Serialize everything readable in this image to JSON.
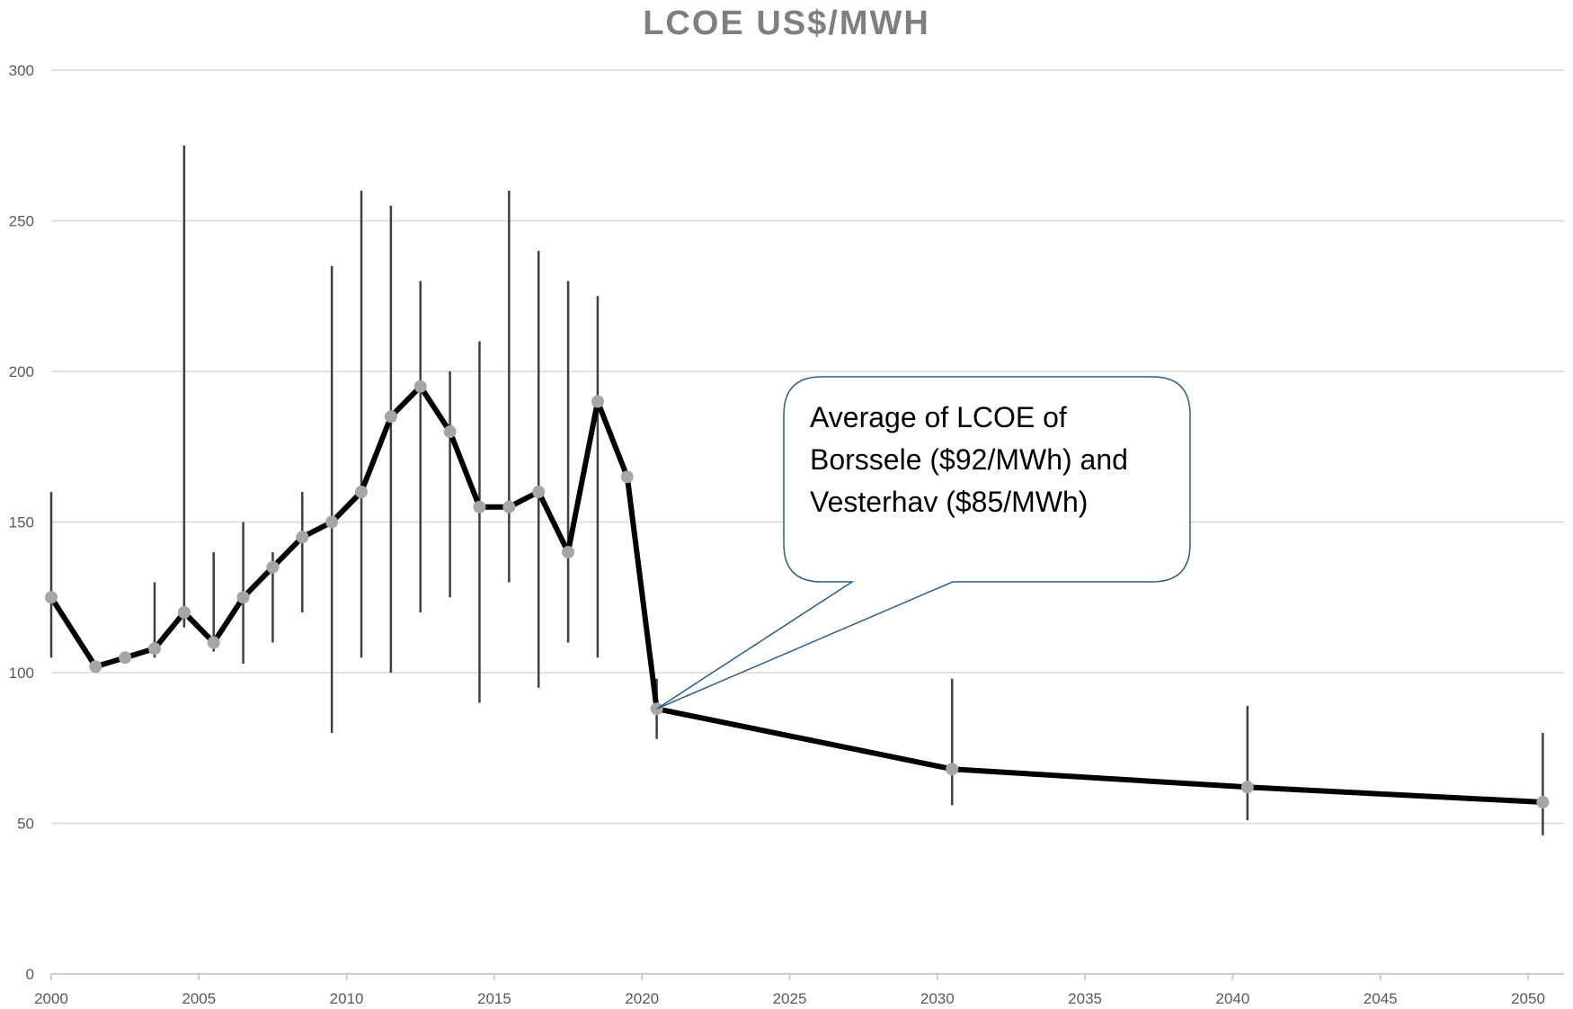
{
  "chart_data": {
    "type": "line",
    "title": "LCOE US$/MWH",
    "xlabel": "",
    "ylabel": "",
    "xlim": [
      2000,
      2050
    ],
    "ylim": [
      0,
      300
    ],
    "x_ticks": [
      "2000",
      "2005",
      "2010",
      "2015",
      "2020",
      "2025",
      "2030",
      "2035",
      "2040",
      "2045",
      "2050"
    ],
    "y_ticks": [
      "0",
      "50",
      "100",
      "150",
      "200",
      "250",
      "300"
    ],
    "grid": true,
    "series": [
      {
        "points": [
          {
            "x": 2000.0,
            "y": 125,
            "low": 105,
            "high": 160
          },
          {
            "x": 2001.5,
            "y": 102,
            "low": null,
            "high": null
          },
          {
            "x": 2002.5,
            "y": 105,
            "low": null,
            "high": null
          },
          {
            "x": 2003.5,
            "y": 108,
            "low": 105,
            "high": 130
          },
          {
            "x": 2004.5,
            "y": 120,
            "low": 115,
            "high": 275
          },
          {
            "x": 2005.5,
            "y": 110,
            "low": 107,
            "high": 140
          },
          {
            "x": 2006.5,
            "y": 125,
            "low": 103,
            "high": 150
          },
          {
            "x": 2007.5,
            "y": 135,
            "low": 110,
            "high": 140
          },
          {
            "x": 2008.5,
            "y": 145,
            "low": 120,
            "high": 160
          },
          {
            "x": 2009.5,
            "y": 150,
            "low": 80,
            "high": 235
          },
          {
            "x": 2010.5,
            "y": 160,
            "low": 105,
            "high": 260
          },
          {
            "x": 2011.5,
            "y": 185,
            "low": 100,
            "high": 255
          },
          {
            "x": 2012.5,
            "y": 195,
            "low": 120,
            "high": 230
          },
          {
            "x": 2013.5,
            "y": 180,
            "low": 125,
            "high": 200
          },
          {
            "x": 2014.5,
            "y": 155,
            "low": 90,
            "high": 210
          },
          {
            "x": 2015.5,
            "y": 155,
            "low": 130,
            "high": 260
          },
          {
            "x": 2016.5,
            "y": 160,
            "low": 95,
            "high": 240
          },
          {
            "x": 2017.5,
            "y": 140,
            "low": 110,
            "high": 230
          },
          {
            "x": 2018.5,
            "y": 190,
            "low": 105,
            "high": 225
          },
          {
            "x": 2019.5,
            "y": 165,
            "low": null,
            "high": null
          },
          {
            "x": 2020.5,
            "y": 88,
            "low": 78,
            "high": 98
          },
          {
            "x": 2030.5,
            "y": 68,
            "low": 56,
            "high": 98
          },
          {
            "x": 2040.5,
            "y": 62,
            "low": 51,
            "high": 89
          },
          {
            "x": 2050.5,
            "y": 57,
            "low": 46,
            "high": 80
          }
        ]
      }
    ],
    "annotation": {
      "lines": [
        "Average of LCOE of",
        "Borssele ($92/MWh) and",
        "Vesterhav ($85/MWh)"
      ],
      "target_x": 2020.5,
      "target_y": 88
    },
    "colors": {
      "line": "#000000",
      "marker": "#a6a6a6",
      "error_bar": "#404040",
      "grid": "#d9d9d9",
      "axis": "#bfbfbf",
      "callout_border": "#2e5e8c"
    }
  }
}
